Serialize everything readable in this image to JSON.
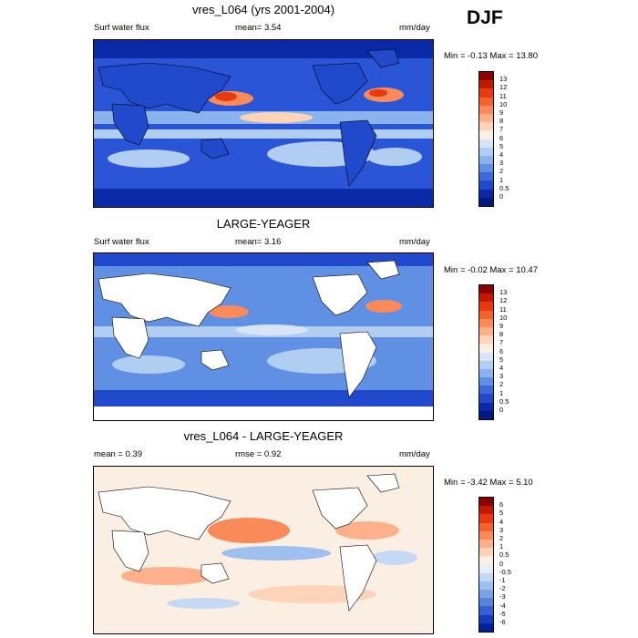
{
  "header": {
    "season": "DJF"
  },
  "panels": [
    {
      "title": "vres_L064 (yrs 2001-2004)",
      "left_label": "Surf water flux",
      "center_label": "mean=   3.54",
      "units": "mm/day",
      "minmax": "Min =  -0.13 Max =  13.80",
      "colorbar": {
        "labels": [
          "13",
          "12",
          "11",
          "10",
          "9",
          "8",
          "7",
          "6",
          "5",
          "4",
          "3",
          "2",
          "1",
          "0.5",
          "0"
        ],
        "colors": [
          "#8c0000",
          "#c21a00",
          "#e83a0e",
          "#f4622e",
          "#fa8a5a",
          "#fdb08a",
          "#fdd4b8",
          "#fbeee3",
          "#d7e4f7",
          "#b2cdf2",
          "#8ab2ec",
          "#5f90e4",
          "#3b6bdb",
          "#2149cc",
          "#0a2aa8",
          "#001a80"
        ]
      },
      "chart_data": {
        "type": "heatmap",
        "title": "vres_L064 (yrs 2001-2004)",
        "variable": "Surf water flux",
        "units": "mm/day",
        "mean": 3.54,
        "min": -0.13,
        "max": 13.8,
        "levels": [
          0,
          0.5,
          1,
          2,
          3,
          4,
          5,
          6,
          7,
          8,
          9,
          10,
          11,
          12,
          13
        ]
      }
    },
    {
      "title": "LARGE-YEAGER",
      "left_label": "Surf water flux",
      "center_label": "mean=   3.16",
      "units": "mm/day",
      "minmax": "Min =  -0.02 Max =  10.47",
      "colorbar": {
        "labels": [
          "13",
          "12",
          "11",
          "10",
          "9",
          "8",
          "7",
          "6",
          "5",
          "4",
          "3",
          "2",
          "1",
          "0.5",
          "0"
        ],
        "colors": [
          "#8c0000",
          "#c21a00",
          "#e83a0e",
          "#f4622e",
          "#fa8a5a",
          "#fdb08a",
          "#fdd4b8",
          "#fbeee3",
          "#d7e4f7",
          "#b2cdf2",
          "#8ab2ec",
          "#5f90e4",
          "#3b6bdb",
          "#2149cc",
          "#0a2aa8",
          "#001a80"
        ]
      },
      "chart_data": {
        "type": "heatmap",
        "title": "LARGE-YEAGER",
        "variable": "Surf water flux",
        "units": "mm/day",
        "mean": 3.16,
        "min": -0.02,
        "max": 10.47,
        "levels": [
          0,
          0.5,
          1,
          2,
          3,
          4,
          5,
          6,
          7,
          8,
          9,
          10,
          11,
          12,
          13
        ]
      }
    },
    {
      "title": "vres_L064 - LARGE-YEAGER",
      "left_label": "mean =   0.39",
      "center_label": "rmse =   0.92",
      "units": "mm/day",
      "minmax": "Min =  -3.42 Max =   5.10",
      "colorbar": {
        "labels": [
          "6",
          "5",
          "4",
          "3",
          "2",
          "1",
          "0.5",
          "0",
          "-0.5",
          "-1",
          "-2",
          "-3",
          "-4",
          "-5",
          "-6"
        ],
        "colors": [
          "#8c0000",
          "#c21a00",
          "#e83a0e",
          "#f4622e",
          "#fa8a5a",
          "#fdb08a",
          "#fdd4b8",
          "#fbeee3",
          "#e6eefa",
          "#c6d9f4",
          "#9fc0ee",
          "#7aa3e6",
          "#5683dc",
          "#3460d1",
          "#163cbc",
          "#00209a"
        ]
      },
      "chart_data": {
        "type": "heatmap",
        "title": "vres_L064 - LARGE-YEAGER",
        "units": "mm/day",
        "mean": 0.39,
        "rmse": 0.92,
        "min": -3.42,
        "max": 5.1,
        "levels": [
          -6,
          -5,
          -4,
          -3,
          -2,
          -1,
          -0.5,
          0,
          0.5,
          1,
          2,
          3,
          4,
          5,
          6
        ]
      }
    }
  ]
}
